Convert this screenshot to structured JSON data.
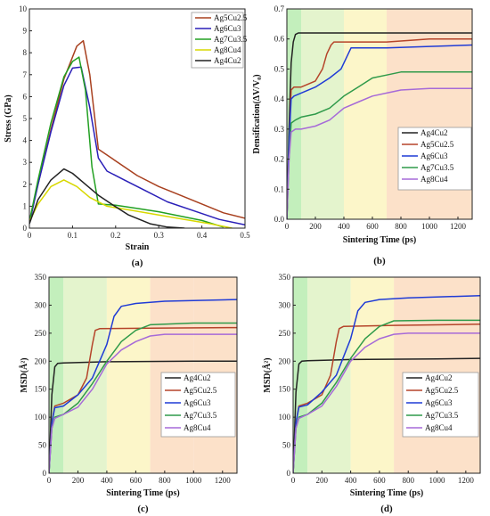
{
  "colors": {
    "Ag4Cu2": "#222222",
    "Ag5Cu2.5": "#b5442a",
    "Ag6Cu3": "#1f3bd6",
    "Ag7Cu3.5": "#2f9a4a",
    "Ag8Cu4": "#a66ad8",
    "a_Ag5Cu2.5": "#a8401f",
    "a_Ag6Cu3": "#2a1fb8",
    "a_Ag7Cu3.5": "#22a022",
    "a_Ag8Cu4": "#d8d800",
    "band1": "#b8ecb0",
    "band2": "#dff2c4",
    "band3": "#fbf5c0",
    "band4": "#fbdcc0"
  },
  "chart_data": [
    {
      "panel": "(a)",
      "type": "line",
      "xlabel": "Strain",
      "ylabel": "Stress (GPa)",
      "xlim": [
        0,
        0.5
      ],
      "ylim": [
        0,
        10
      ],
      "xticks": [
        "0",
        "0.1",
        "0.2",
        "0.3",
        "0.4",
        "0.5"
      ],
      "xtick_values": [
        0,
        0.1,
        0.2,
        0.3,
        0.4,
        0.5
      ],
      "yticks": [
        "0",
        "1",
        "2",
        "3",
        "4",
        "5",
        "6",
        "7",
        "8",
        "9",
        "10"
      ],
      "ytick_values": [
        0,
        1,
        2,
        3,
        4,
        5,
        6,
        7,
        8,
        9,
        10
      ],
      "legend": "top-right",
      "series": [
        {
          "name": "Ag5Cu2.5",
          "color_key": "a_Ag5Cu2.5",
          "x": [
            0,
            0.02,
            0.05,
            0.08,
            0.11,
            0.125,
            0.14,
            0.16,
            0.19,
            0.25,
            0.3,
            0.35,
            0.4,
            0.45,
            0.5
          ],
          "y": [
            0.3,
            2.0,
            4.5,
            6.8,
            8.3,
            8.55,
            7.0,
            3.6,
            3.2,
            2.4,
            1.9,
            1.5,
            1.1,
            0.7,
            0.45
          ]
        },
        {
          "name": "Ag6Cu3",
          "color_key": "a_Ag6Cu3",
          "x": [
            0,
            0.02,
            0.05,
            0.08,
            0.1,
            0.12,
            0.14,
            0.16,
            0.18,
            0.22,
            0.27,
            0.32,
            0.38,
            0.44,
            0.5
          ],
          "y": [
            0.2,
            2.0,
            4.4,
            6.5,
            7.3,
            7.35,
            5.5,
            3.2,
            2.6,
            2.2,
            1.7,
            1.2,
            0.8,
            0.4,
            0.15
          ]
        },
        {
          "name": "Ag7Cu3.5",
          "color_key": "a_Ag7Cu3.5",
          "x": [
            0,
            0.02,
            0.05,
            0.08,
            0.1,
            0.115,
            0.13,
            0.145,
            0.16,
            0.2,
            0.25,
            0.3,
            0.35,
            0.4,
            0.45
          ],
          "y": [
            0.3,
            2.2,
            4.8,
            6.9,
            7.6,
            7.8,
            6.3,
            2.8,
            1.1,
            1.05,
            0.9,
            0.75,
            0.55,
            0.35,
            0.05
          ]
        },
        {
          "name": "Ag8Cu4",
          "color_key": "a_Ag8Cu4",
          "x": [
            0,
            0.02,
            0.05,
            0.08,
            0.11,
            0.14,
            0.18,
            0.24,
            0.3,
            0.36,
            0.42,
            0.47
          ],
          "y": [
            0.3,
            1.1,
            1.9,
            2.2,
            1.9,
            1.4,
            1.0,
            0.8,
            0.6,
            0.4,
            0.2,
            0.0
          ]
        },
        {
          "name": "Ag4Cu2",
          "color_key": "Ag4Cu2",
          "x": [
            0,
            0.02,
            0.05,
            0.08,
            0.1,
            0.13,
            0.16,
            0.19,
            0.23,
            0.28,
            0.32,
            0.36
          ],
          "y": [
            0.2,
            1.3,
            2.2,
            2.7,
            2.5,
            2.0,
            1.5,
            1.1,
            0.6,
            0.2,
            0.05,
            0.0
          ]
        }
      ]
    },
    {
      "panel": "(b)",
      "type": "line",
      "xlabel": "Sintering Time (ps)",
      "ylabel": "Densification(ΔV/V₀)",
      "xlim": [
        0,
        1300
      ],
      "ylim": [
        0,
        0.7
      ],
      "xticks": [
        "0",
        "200",
        "400",
        "600",
        "800",
        "1000",
        "1200"
      ],
      "xtick_values": [
        0,
        200,
        400,
        600,
        800,
        1000,
        1200
      ],
      "yticks": [
        "0.0",
        "0.1",
        "0.2",
        "0.3",
        "0.4",
        "0.5",
        "0.6",
        "0.7"
      ],
      "ytick_values": [
        0,
        0.1,
        0.2,
        0.3,
        0.4,
        0.5,
        0.6,
        0.7
      ],
      "bands": [
        [
          0,
          100
        ],
        [
          100,
          400
        ],
        [
          400,
          700
        ],
        [
          700,
          1000
        ],
        [
          1000,
          1300
        ]
      ],
      "legend": "bottom-right",
      "series": [
        {
          "name": "Ag4Cu2",
          "color_key": "Ag4Cu2",
          "x": [
            0,
            15,
            30,
            45,
            60,
            80,
            150,
            400,
            700,
            1000,
            1300
          ],
          "y": [
            0.0,
            0.3,
            0.52,
            0.59,
            0.615,
            0.62,
            0.62,
            0.62,
            0.62,
            0.62,
            0.62
          ]
        },
        {
          "name": "Ag5Cu2.5",
          "color_key": "Ag5Cu2.5",
          "x": [
            0,
            15,
            30,
            50,
            100,
            150,
            200,
            250,
            280,
            310,
            330,
            400,
            700,
            1000,
            1300
          ],
          "y": [
            0.0,
            0.25,
            0.43,
            0.44,
            0.44,
            0.45,
            0.46,
            0.5,
            0.55,
            0.58,
            0.59,
            0.59,
            0.59,
            0.6,
            0.6
          ]
        },
        {
          "name": "Ag6Cu3",
          "color_key": "Ag6Cu3",
          "x": [
            0,
            15,
            30,
            50,
            100,
            200,
            300,
            380,
            420,
            450,
            500,
            700,
            1000,
            1300
          ],
          "y": [
            0.0,
            0.25,
            0.4,
            0.41,
            0.42,
            0.44,
            0.47,
            0.5,
            0.54,
            0.57,
            0.57,
            0.57,
            0.575,
            0.58
          ]
        },
        {
          "name": "Ag7Cu3.5",
          "color_key": "Ag7Cu3.5",
          "x": [
            0,
            15,
            30,
            60,
            100,
            200,
            300,
            400,
            500,
            600,
            700,
            800,
            1000,
            1300
          ],
          "y": [
            0.0,
            0.2,
            0.32,
            0.33,
            0.34,
            0.35,
            0.37,
            0.41,
            0.44,
            0.47,
            0.48,
            0.49,
            0.49,
            0.49
          ]
        },
        {
          "name": "Ag8Cu4",
          "color_key": "Ag8Cu4",
          "x": [
            0,
            15,
            30,
            60,
            100,
            200,
            300,
            400,
            500,
            600,
            700,
            800,
            1000,
            1300
          ],
          "y": [
            0.0,
            0.2,
            0.29,
            0.3,
            0.3,
            0.31,
            0.33,
            0.37,
            0.39,
            0.41,
            0.42,
            0.43,
            0.435,
            0.435
          ]
        }
      ]
    },
    {
      "panel": "(c)",
      "type": "line",
      "xlabel": "Sintering Time (ps)",
      "ylabel": "MSD(Å²)",
      "xlim": [
        0,
        1300
      ],
      "ylim": [
        0,
        350
      ],
      "xticks": [
        "0",
        "200",
        "400",
        "600",
        "800",
        "1000",
        "1200"
      ],
      "xtick_values": [
        0,
        200,
        400,
        600,
        800,
        1000,
        1200
      ],
      "yticks": [
        "0",
        "50",
        "100",
        "150",
        "200",
        "250",
        "300",
        "350"
      ],
      "ytick_values": [
        0,
        50,
        100,
        150,
        200,
        250,
        300,
        350
      ],
      "bands": [
        [
          0,
          100
        ],
        [
          100,
          400
        ],
        [
          400,
          700
        ],
        [
          700,
          1000
        ],
        [
          1000,
          1300
        ]
      ],
      "legend": "bottom-right",
      "series": [
        {
          "name": "Ag4Cu2",
          "color_key": "Ag4Cu2",
          "x": [
            0,
            20,
            40,
            60,
            100,
            400,
            1000,
            1300
          ],
          "y": [
            0,
            140,
            190,
            196,
            197,
            199,
            200,
            200
          ]
        },
        {
          "name": "Ag5Cu2.5",
          "color_key": "Ag5Cu2.5",
          "x": [
            0,
            20,
            40,
            100,
            200,
            260,
            300,
            320,
            350,
            700,
            1300
          ],
          "y": [
            0,
            90,
            120,
            125,
            140,
            170,
            230,
            255,
            258,
            259,
            260
          ]
        },
        {
          "name": "Ag6Cu3",
          "color_key": "Ag6Cu3",
          "x": [
            0,
            20,
            40,
            100,
            200,
            300,
            400,
            450,
            500,
            600,
            800,
            1300
          ],
          "y": [
            0,
            90,
            117,
            120,
            140,
            170,
            230,
            280,
            298,
            303,
            307,
            310
          ]
        },
        {
          "name": "Ag7Cu3.5",
          "color_key": "Ag7Cu3.5",
          "x": [
            0,
            20,
            40,
            100,
            200,
            300,
            400,
            500,
            600,
            700,
            1000,
            1300
          ],
          "y": [
            0,
            80,
            100,
            105,
            125,
            160,
            200,
            235,
            255,
            265,
            268,
            268
          ]
        },
        {
          "name": "Ag8Cu4",
          "color_key": "Ag8Cu4",
          "x": [
            0,
            20,
            40,
            100,
            200,
            300,
            400,
            500,
            600,
            700,
            800,
            1000,
            1300
          ],
          "y": [
            0,
            80,
            98,
            105,
            118,
            150,
            195,
            220,
            235,
            245,
            248,
            248,
            248
          ]
        }
      ]
    },
    {
      "panel": "(d)",
      "type": "line",
      "xlabel": "Sintering Time (ps)",
      "ylabel": "MSD(Å²)",
      "xlim": [
        0,
        1300
      ],
      "ylim": [
        0,
        350
      ],
      "xticks": [
        "0",
        "200",
        "400",
        "600",
        "800",
        "1000",
        "1200"
      ],
      "xtick_values": [
        0,
        200,
        400,
        600,
        800,
        1000,
        1200
      ],
      "yticks": [
        "0",
        "50",
        "100",
        "150",
        "200",
        "250",
        "300",
        "350"
      ],
      "ytick_values": [
        0,
        50,
        100,
        150,
        200,
        250,
        300,
        350
      ],
      "bands": [
        [
          0,
          100
        ],
        [
          100,
          400
        ],
        [
          400,
          700
        ],
        [
          700,
          1000
        ],
        [
          1000,
          1300
        ]
      ],
      "legend": "bottom-right",
      "series": [
        {
          "name": "Ag4Cu2",
          "color_key": "Ag4Cu2",
          "x": [
            0,
            20,
            40,
            60,
            100,
            400,
            1000,
            1300
          ],
          "y": [
            0,
            145,
            195,
            200,
            201,
            203,
            204,
            205
          ]
        },
        {
          "name": "Ag5Cu2.5",
          "color_key": "Ag5Cu2.5",
          "x": [
            0,
            20,
            40,
            100,
            200,
            260,
            300,
            320,
            350,
            700,
            1300
          ],
          "y": [
            0,
            90,
            120,
            125,
            140,
            175,
            235,
            258,
            262,
            264,
            266
          ]
        },
        {
          "name": "Ag6Cu3",
          "color_key": "Ag6Cu3",
          "x": [
            0,
            20,
            40,
            100,
            200,
            300,
            400,
            450,
            500,
            600,
            800,
            1300
          ],
          "y": [
            0,
            90,
            118,
            122,
            145,
            175,
            240,
            290,
            305,
            310,
            313,
            317
          ]
        },
        {
          "name": "Ag7Cu3.5",
          "color_key": "Ag7Cu3.5",
          "x": [
            0,
            20,
            40,
            100,
            200,
            300,
            400,
            500,
            600,
            700,
            1000,
            1300
          ],
          "y": [
            0,
            80,
            100,
            105,
            125,
            162,
            205,
            240,
            262,
            272,
            273,
            273
          ]
        },
        {
          "name": "Ag8Cu4",
          "color_key": "Ag8Cu4",
          "x": [
            0,
            20,
            40,
            100,
            200,
            300,
            400,
            500,
            600,
            700,
            800,
            1000,
            1300
          ],
          "y": [
            0,
            80,
            98,
            105,
            120,
            155,
            200,
            225,
            240,
            248,
            250,
            250,
            250
          ]
        }
      ]
    }
  ]
}
